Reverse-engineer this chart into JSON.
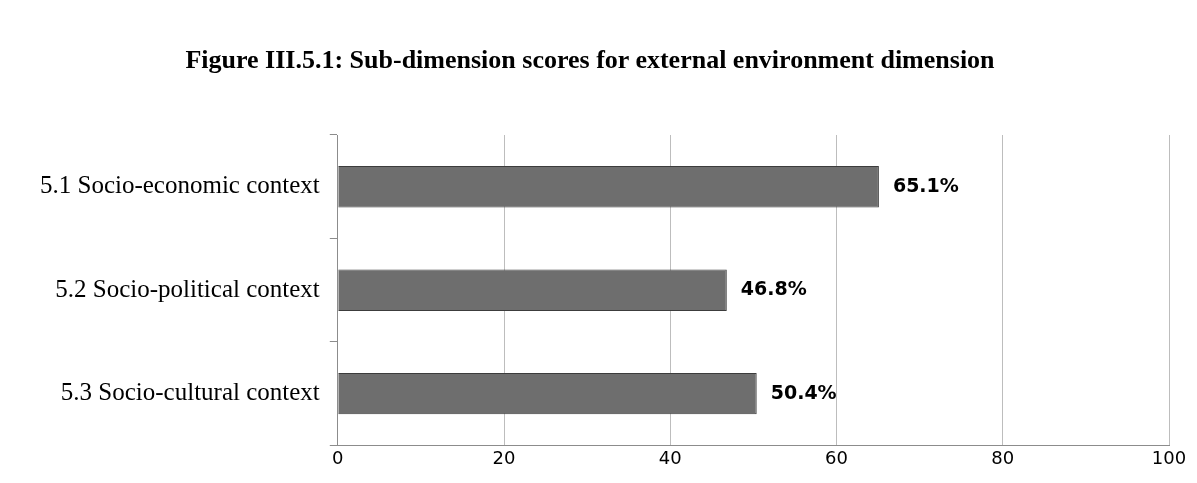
{
  "chart_data": {
    "type": "bar",
    "orientation": "horizontal",
    "title": "Figure III.5.1: Sub-dimension scores for external environment dimension",
    "categories": [
      "5.1 Socio-economic context",
      "5.2 Socio-political context",
      "5.3 Socio-cultural context"
    ],
    "values": [
      65.1,
      46.8,
      50.4
    ],
    "value_labels": [
      "65.1%",
      "46.8%",
      "50.4%"
    ],
    "color": "#6e6e6e",
    "xlim": [
      0,
      100
    ],
    "xticks": [
      0,
      20,
      40,
      60,
      80,
      100
    ],
    "grid": "x",
    "legend": false
  }
}
